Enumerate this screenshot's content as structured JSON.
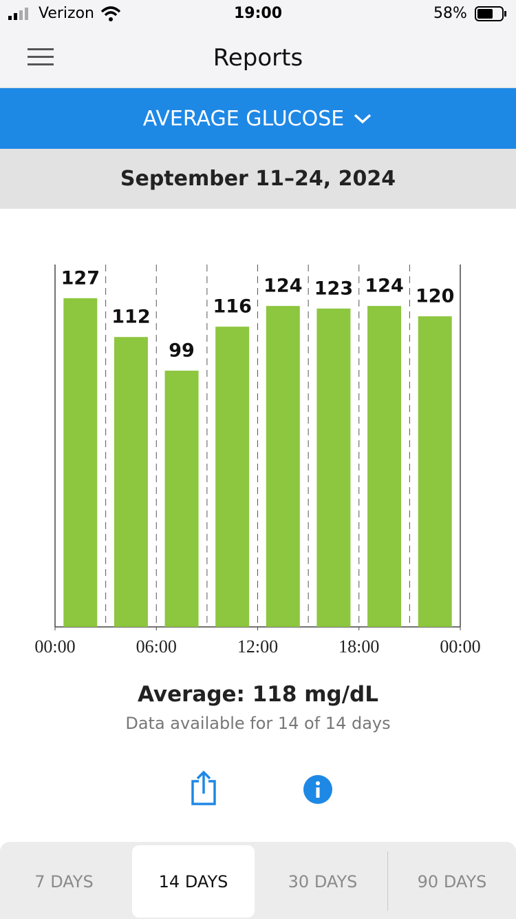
{
  "status_bar": {
    "carrier": "Verizon",
    "time": "19:00",
    "battery": "58%"
  },
  "header": {
    "title": "Reports"
  },
  "report_selector": {
    "label": "AVERAGE GLUCOSE"
  },
  "date_range": "September 11–24, 2024",
  "chart_data": {
    "type": "bar",
    "categories": [
      null,
      null,
      null,
      null,
      null,
      null,
      null,
      null
    ],
    "values": [
      127,
      112,
      99,
      116,
      124,
      123,
      124,
      120
    ],
    "color": "#8dc63f",
    "ylim": [
      0,
      140
    ],
    "xlim": [
      0,
      24
    ],
    "xticks": [
      {
        "value": 0,
        "label": "00:00"
      },
      {
        "value": 6,
        "label": "06:00"
      },
      {
        "value": 12,
        "label": "12:00"
      },
      {
        "value": 18,
        "label": "18:00"
      },
      {
        "value": 24,
        "label": "00:00"
      }
    ]
  },
  "summary": {
    "average": "Average: 118 mg/dL",
    "availability": "Data available for 14 of 14 days"
  },
  "period_tabs": {
    "items": [
      "7 DAYS",
      "14 DAYS",
      "30 DAYS",
      "90 DAYS"
    ],
    "selected": 1
  }
}
